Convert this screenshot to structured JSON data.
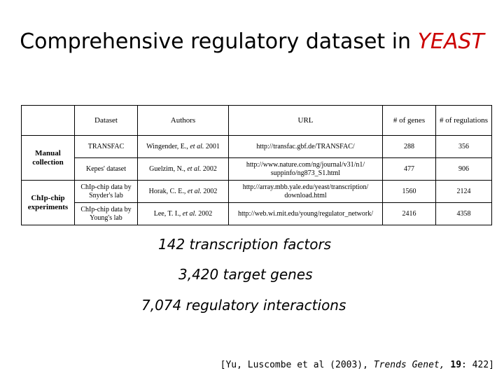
{
  "title": {
    "main": "Comprehensive regulatory dataset in",
    "accent": "YEAST",
    "accent_color": "#cc0000"
  },
  "table": {
    "headers": {
      "dataset": "Dataset",
      "authors": "Authors",
      "url": "URL",
      "genes": "# of genes",
      "regulations": "# of regulations"
    },
    "groups": [
      {
        "label": "Manual collection",
        "rows": [
          {
            "dataset": "TRANSFAC",
            "author": "Wingender, E.,",
            "etal": "et al.",
            "year": "2001",
            "url": "http://transfac.gbf.de/TRANSFAC/",
            "genes": "288",
            "regulations": "356"
          },
          {
            "dataset": "Kepes' dataset",
            "author": "Guelzim, N.,",
            "etal": "et al.",
            "year": "2002",
            "url": "http://www.nature.com/ng/journal/v31/n1/ suppinfo/ng873_S1.html",
            "genes": "477",
            "regulations": "906"
          }
        ]
      },
      {
        "label": "ChIp-chip experiments",
        "rows": [
          {
            "dataset": "ChIp-chip data by Snyder's lab",
            "author": "Horak, C. E.,",
            "etal": "et al.",
            "year": "2002",
            "url": "http://array.mbb.yale.edu/yeast/transcription/ download.html",
            "genes": "1560",
            "regulations": "2124"
          },
          {
            "dataset": "ChIp-chip data by Young's lab",
            "author": "Lee, T. I.,",
            "etal": "et al.",
            "year": "2002",
            "url": "http://web.wi.mit.edu/young/regulator_network/",
            "genes": "2416",
            "regulations": "4358"
          }
        ]
      }
    ]
  },
  "stats": [
    "142 transcription factors",
    "3,420 target genes",
    "7,074 regulatory interactions"
  ],
  "citation": {
    "open": "[Yu, Luscombe et al (2003),",
    "journal": "Trends Genet,",
    "volume": "19",
    "pages": ": 422]"
  }
}
